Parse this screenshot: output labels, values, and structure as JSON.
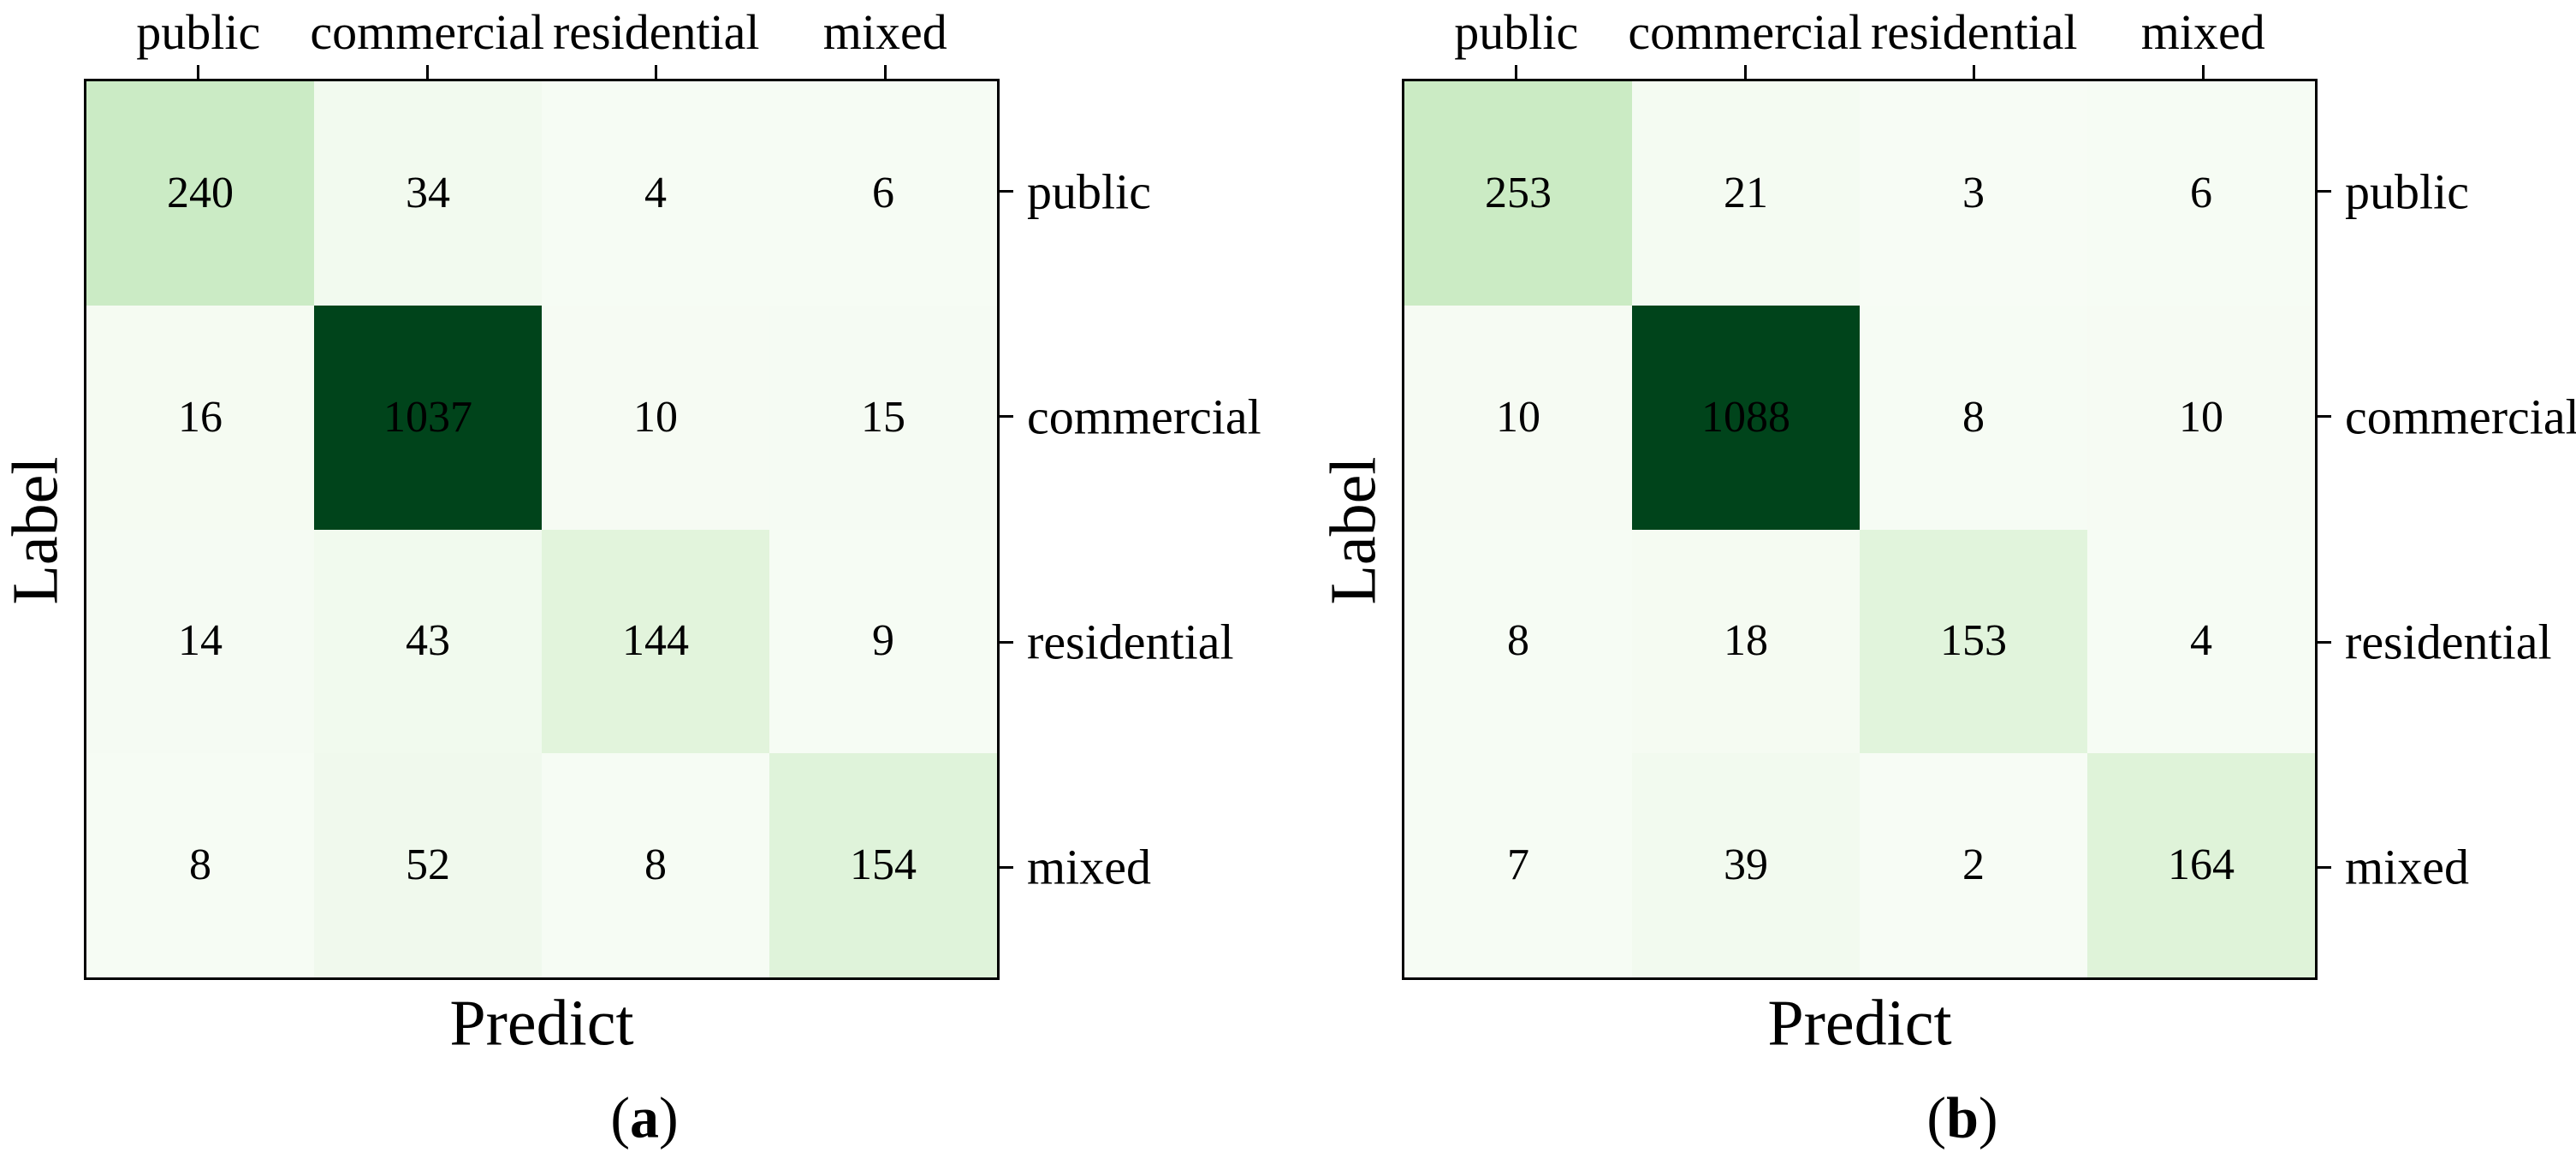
{
  "figure": {
    "background": "#ffffff",
    "text_color": "#000000",
    "border_color": "#000000",
    "colormap": {
      "name": "Greens",
      "stops": [
        "#f7fcf5",
        "#e5f5e0",
        "#c7e9c0",
        "#a1d99b",
        "#74c476",
        "#41ab5d",
        "#238b45",
        "#006d2c",
        "#00441b"
      ]
    },
    "diagonal_max_color": "#00441b",
    "min_color": "#f7fcf5"
  },
  "chart_data": [
    {
      "type": "heatmap",
      "title": "(a)",
      "xlabel": "Predict",
      "ylabel": "Label",
      "x_axis_position": "top",
      "y_axis_position": "right",
      "grid": false,
      "legend": "none",
      "x_tick_labels": [
        "public",
        "commercial",
        "residential",
        "mixed"
      ],
      "y_tick_labels": [
        "public",
        "commercial",
        "residential",
        "mixed"
      ],
      "values": [
        [
          240,
          34,
          4,
          6
        ],
        [
          16,
          1037,
          10,
          15
        ],
        [
          14,
          43,
          144,
          9
        ],
        [
          8,
          52,
          8,
          154
        ]
      ]
    },
    {
      "type": "heatmap",
      "title": "(b)",
      "xlabel": "Predict",
      "ylabel": "Label",
      "x_axis_position": "top",
      "y_axis_position": "right",
      "grid": false,
      "legend": "none",
      "x_tick_labels": [
        "public",
        "commercial",
        "residential",
        "mixed"
      ],
      "y_tick_labels": [
        "public",
        "commercial",
        "residential",
        "mixed"
      ],
      "values": [
        [
          253,
          21,
          3,
          6
        ],
        [
          10,
          1088,
          8,
          10
        ],
        [
          8,
          18,
          153,
          4
        ],
        [
          7,
          39,
          2,
          164
        ]
      ]
    }
  ]
}
